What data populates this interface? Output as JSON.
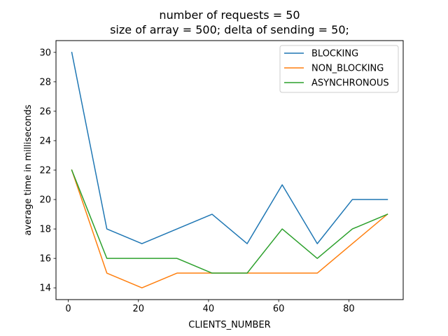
{
  "chart_data": {
    "type": "line",
    "title": "number of requests = 50",
    "subtitle": "size of array = 500; delta of sending = 50;",
    "xlabel": "CLIENTS_NUMBER",
    "ylabel": "average time in milliseconds",
    "xlim": [
      -3.5,
      95.5
    ],
    "ylim": [
      13.2,
      30.8
    ],
    "xticks": [
      0,
      20,
      40,
      60,
      80
    ],
    "yticks": [
      14,
      16,
      18,
      20,
      22,
      24,
      26,
      28,
      30
    ],
    "grid": false,
    "legend_position": "top-right",
    "x": [
      1,
      11,
      21,
      31,
      41,
      51,
      61,
      71,
      81,
      91
    ],
    "series": [
      {
        "name": "BLOCKING",
        "color": "#1f77b4",
        "values": [
          30,
          18,
          17,
          18,
          19,
          17,
          21,
          17,
          20,
          20
        ]
      },
      {
        "name": "NON_BLOCKING",
        "color": "#ff7f0e",
        "values": [
          22,
          15,
          14,
          15,
          15,
          15,
          15,
          15,
          17,
          19
        ]
      },
      {
        "name": "ASYNCHRONOUS",
        "color": "#2ca02c",
        "values": [
          22,
          16,
          16,
          16,
          15,
          15,
          18,
          16,
          18,
          19
        ]
      }
    ]
  }
}
